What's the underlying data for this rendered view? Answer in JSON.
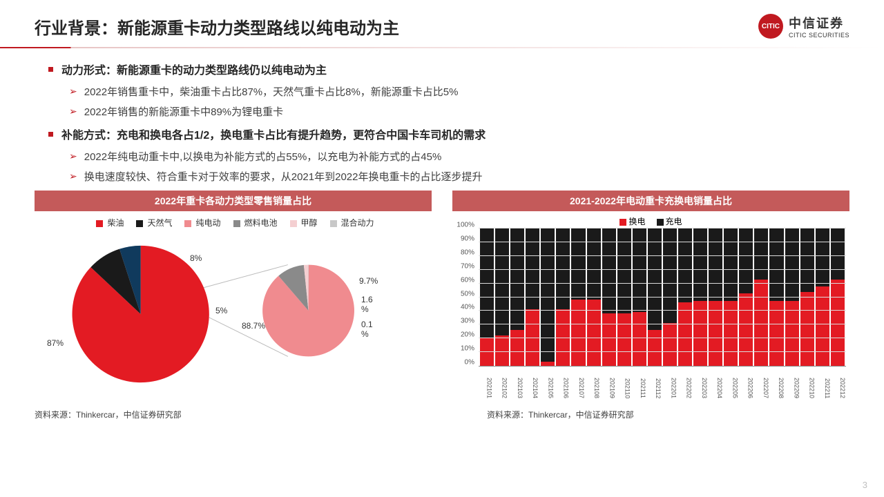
{
  "header": {
    "title": "行业背景：新能源重卡动力类型路线以纯电动为主",
    "logo_cn": "中信证券",
    "logo_en": "CITIC SECURITIES",
    "logo_mark": "CITIC"
  },
  "bullets": [
    {
      "main": "动力形式：新能源重卡的动力类型路线仍以纯电动为主",
      "subs": [
        "2022年销售重卡中，柴油重卡占比87%，天然气重卡占比8%，新能源重卡占比5%",
        "2022年销售的新能源重卡中89%为锂电重卡"
      ]
    },
    {
      "main": "补能方式：充电和换电各占1/2，换电重卡占比有提升趋势，更符合中国卡车司机的需求",
      "subs": [
        "2022年纯电动重卡中,以换电为补能方式的占55%，以充电为补能方式的占45%",
        "换电速度较快、符合重卡对于效率的要求，从2021年到2022年换电重卡的占比逐步提升"
      ]
    }
  ],
  "pie_chart": {
    "title": "2022年重卡各动力类型零售销量占比",
    "legend": [
      {
        "label": "柴油",
        "color": "#e31b23"
      },
      {
        "label": "天然气",
        "color": "#1a1a1a"
      },
      {
        "label": "纯电动",
        "color": "#f08b8f"
      },
      {
        "label": "燃料电池",
        "color": "#8a8a8a"
      },
      {
        "label": "甲醇",
        "color": "#f4cfd1"
      },
      {
        "label": "混合动力",
        "color": "#c8c8c8"
      }
    ],
    "main_pie": {
      "slices": [
        {
          "pct": 87,
          "color": "#e31b23",
          "label": "87%"
        },
        {
          "pct": 8,
          "color": "#1a1a1a",
          "label": "8%"
        },
        {
          "pct": 5,
          "color": "#103a5d",
          "label": "5%"
        }
      ]
    },
    "sub_pie": {
      "slices": [
        {
          "pct": 88.7,
          "color": "#f08b8f",
          "label": "88.7%"
        },
        {
          "pct": 9.7,
          "color": "#8a8a8a",
          "label": "9.7%"
        },
        {
          "pct": 1.6,
          "color": "#f4cfd1",
          "label": "1.6%"
        },
        {
          "pct": 0.1,
          "color": "#c8c8c8",
          "label": "0.1%"
        }
      ]
    }
  },
  "bar_chart": {
    "title": "2021-2022年电动重卡充换电销量占比",
    "legend": [
      {
        "label": "换电",
        "color": "#e31b23"
      },
      {
        "label": "充电",
        "color": "#1a1a1a"
      }
    ],
    "y_ticks": [
      "0%",
      "10%",
      "20%",
      "30%",
      "40%",
      "50%",
      "60%",
      "70%",
      "80%",
      "90%",
      "100%"
    ],
    "categories": [
      "202101",
      "202102",
      "202103",
      "202104",
      "202105",
      "202106",
      "202107",
      "202108",
      "202109",
      "202110",
      "202111",
      "202112",
      "202201",
      "202202",
      "202203",
      "202204",
      "202205",
      "202206",
      "202207",
      "202208",
      "202209",
      "202210",
      "202211",
      "202212"
    ],
    "swap_values": [
      20,
      22,
      26,
      41,
      3,
      41,
      48,
      48,
      38,
      38,
      39,
      26,
      31,
      46,
      47,
      47,
      47,
      53,
      63,
      47,
      47,
      54,
      58,
      63
    ],
    "colors": {
      "swap": "#e31b23",
      "charge": "#1a1a1a"
    }
  },
  "source_text": "资料来源：Thinkercar，中信证券研究部",
  "page_number": "3"
}
